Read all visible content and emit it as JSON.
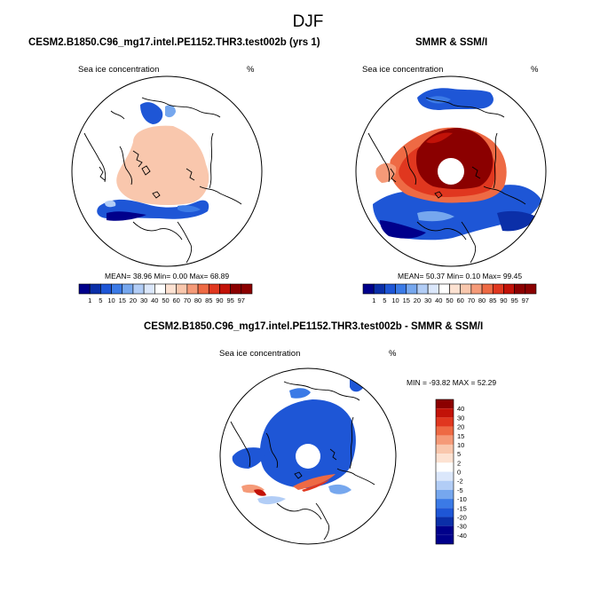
{
  "title": "DJF",
  "colors": {
    "deep_blue": "#00008b",
    "blue1": "#0b2fa8",
    "blue2": "#1e56d6",
    "blue3": "#3b7ae6",
    "blue4": "#76a7ee",
    "blue5": "#b2cdf6",
    "blue6": "#dbe7fb",
    "peach1": "#fde2d2",
    "peach2": "#f9c7ad",
    "orange1": "#f59a78",
    "orange2": "#ee6a44",
    "red1": "#e0371f",
    "red2": "#c21208",
    "dark_red": "#8b0000",
    "white": "#ffffff",
    "land_outline": "#000000"
  },
  "chart_data": [
    {
      "type": "heatmap",
      "panel": "model",
      "projection": "north-polar-stereographic",
      "title": "CESM2.B1850.C96_mg17.intel.PE1152.THR3.test002b (yrs 1)",
      "left_label": "Sea ice concentration",
      "right_label": "%",
      "stats": {
        "mean": "38.96",
        "min": "0.00",
        "max": "68.89"
      },
      "stats_text": "MEAN=  38.96  Min=   0.00  Max=  68.89",
      "colorbar": {
        "orientation": "horizontal",
        "levels": [
          "1",
          "5",
          "10",
          "15",
          "20",
          "30",
          "40",
          "50",
          "60",
          "70",
          "80",
          "85",
          "90",
          "95",
          "97"
        ]
      }
    },
    {
      "type": "heatmap",
      "panel": "observation",
      "projection": "north-polar-stereographic",
      "title": "SMMR & SSM/I",
      "left_label": "Sea ice concentration",
      "right_label": "%",
      "stats": {
        "mean": "50.37",
        "min": "0.10",
        "max": "99.45"
      },
      "stats_text": "MEAN=  50.37  Min=   0.10  Max=  99.45",
      "colorbar": {
        "orientation": "horizontal",
        "levels": [
          "1",
          "5",
          "10",
          "15",
          "20",
          "30",
          "40",
          "50",
          "60",
          "70",
          "80",
          "85",
          "90",
          "95",
          "97"
        ]
      }
    },
    {
      "type": "heatmap",
      "panel": "difference",
      "projection": "north-polar-stereographic",
      "title": "CESM2.B1850.C96_mg17.intel.PE1152.THR3.test002b - SMMR & SSM/I",
      "left_label": "Sea ice concentration",
      "right_label": "%",
      "stats": {
        "min": "-93.82",
        "max": "52.29"
      },
      "stats_text": "MIN = -93.82  MAX =  52.29",
      "colorbar": {
        "orientation": "vertical",
        "levels": [
          "40",
          "30",
          "20",
          "15",
          "10",
          "5",
          "2",
          "0",
          "-2",
          "-5",
          "-10",
          "-15",
          "-20",
          "-30",
          "-40"
        ]
      }
    }
  ]
}
